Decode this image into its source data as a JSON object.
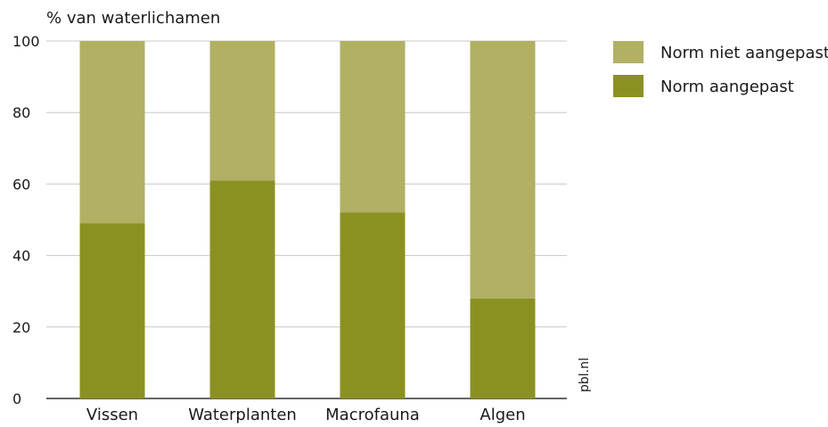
{
  "chart_data": {
    "type": "bar",
    "stacked": true,
    "ylabel": "% van waterlichamen",
    "ylim": [
      0,
      100
    ],
    "yticks": [
      0,
      20,
      40,
      60,
      80,
      100
    ],
    "categories": [
      "Vissen",
      "Waterplanten",
      "Macrofauna",
      "Algen"
    ],
    "series": [
      {
        "name": "Norm aangepast",
        "values": [
          49,
          61,
          52,
          28
        ],
        "color": "#8b9121"
      },
      {
        "name": "Norm niet aangepast",
        "values": [
          51,
          39,
          48,
          72
        ],
        "color": "#b1b063"
      }
    ],
    "legend_order": [
      "Norm niet aangepast",
      "Norm aangepast"
    ],
    "legend_position": "top-right",
    "grid": true,
    "gridline_color": "#c8c8c8",
    "source": "pbl.nl"
  }
}
